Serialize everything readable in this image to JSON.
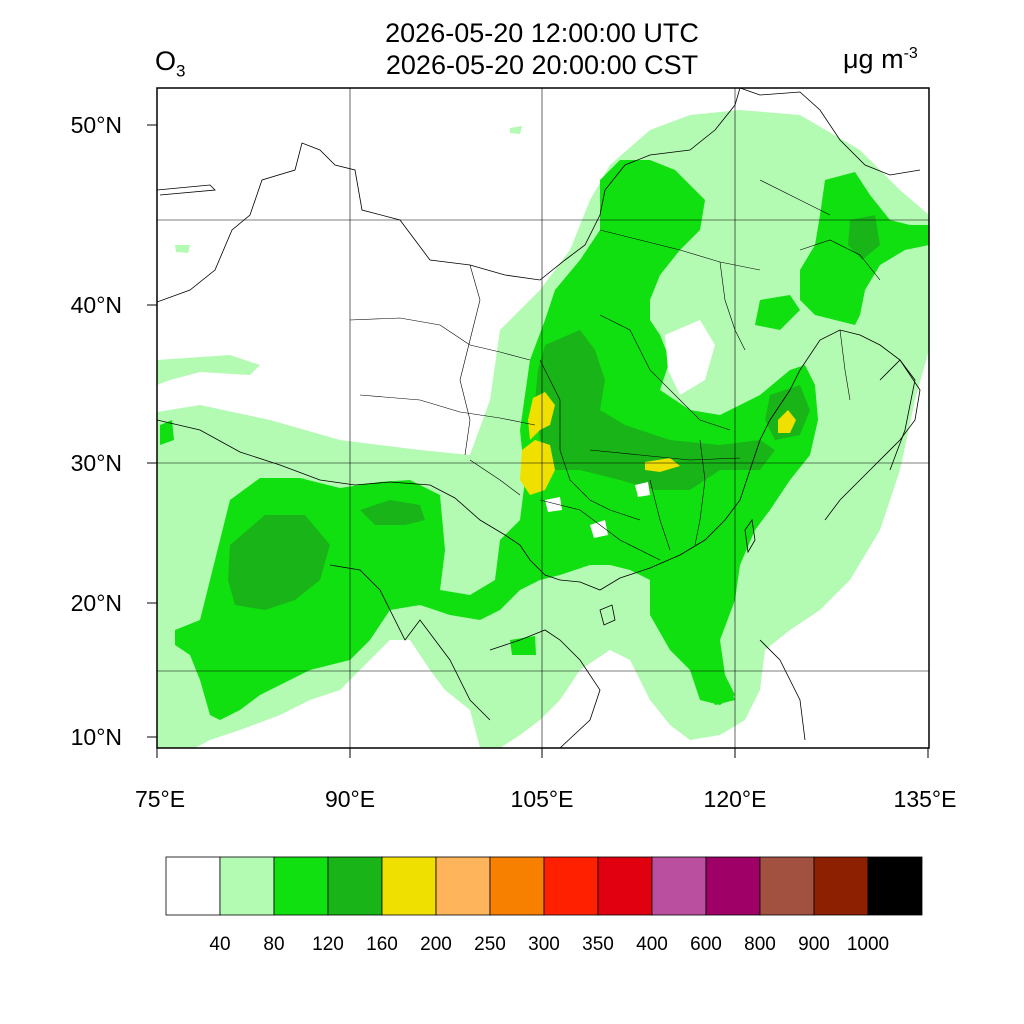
{
  "title": {
    "utc": "2026-05-20 12:00:00 UTC",
    "local": "2026-05-20 20:00:00 CST"
  },
  "species": {
    "base": "O",
    "sub": "3"
  },
  "units": {
    "base": "μg m",
    "sup": "-3"
  },
  "axes": {
    "x_ticks": [
      "75°E",
      "90°E",
      "105°E",
      "120°E",
      "135°E"
    ],
    "y_ticks": [
      "10°N",
      "20°N",
      "30°N",
      "40°N",
      "50°N"
    ]
  },
  "colorbar": {
    "colors": [
      "#ffffff",
      "#b3fab3",
      "#10e010",
      "#18b418",
      "#f0e000",
      "#fdb45a",
      "#f88000",
      "#ff2000",
      "#e00010",
      "#bb4f9f",
      "#9e0068",
      "#a25040",
      "#8c2000",
      "#000000"
    ],
    "levels": [
      "40",
      "80",
      "120",
      "160",
      "200",
      "250",
      "300",
      "350",
      "400",
      "600",
      "800",
      "900",
      "1000"
    ]
  },
  "field_colors": {
    "light_green": "#b3fab3",
    "green": "#10e010",
    "dark_green": "#18b418",
    "yellow": "#f0e000",
    "boundary": "#000000",
    "grid": "#000000"
  }
}
